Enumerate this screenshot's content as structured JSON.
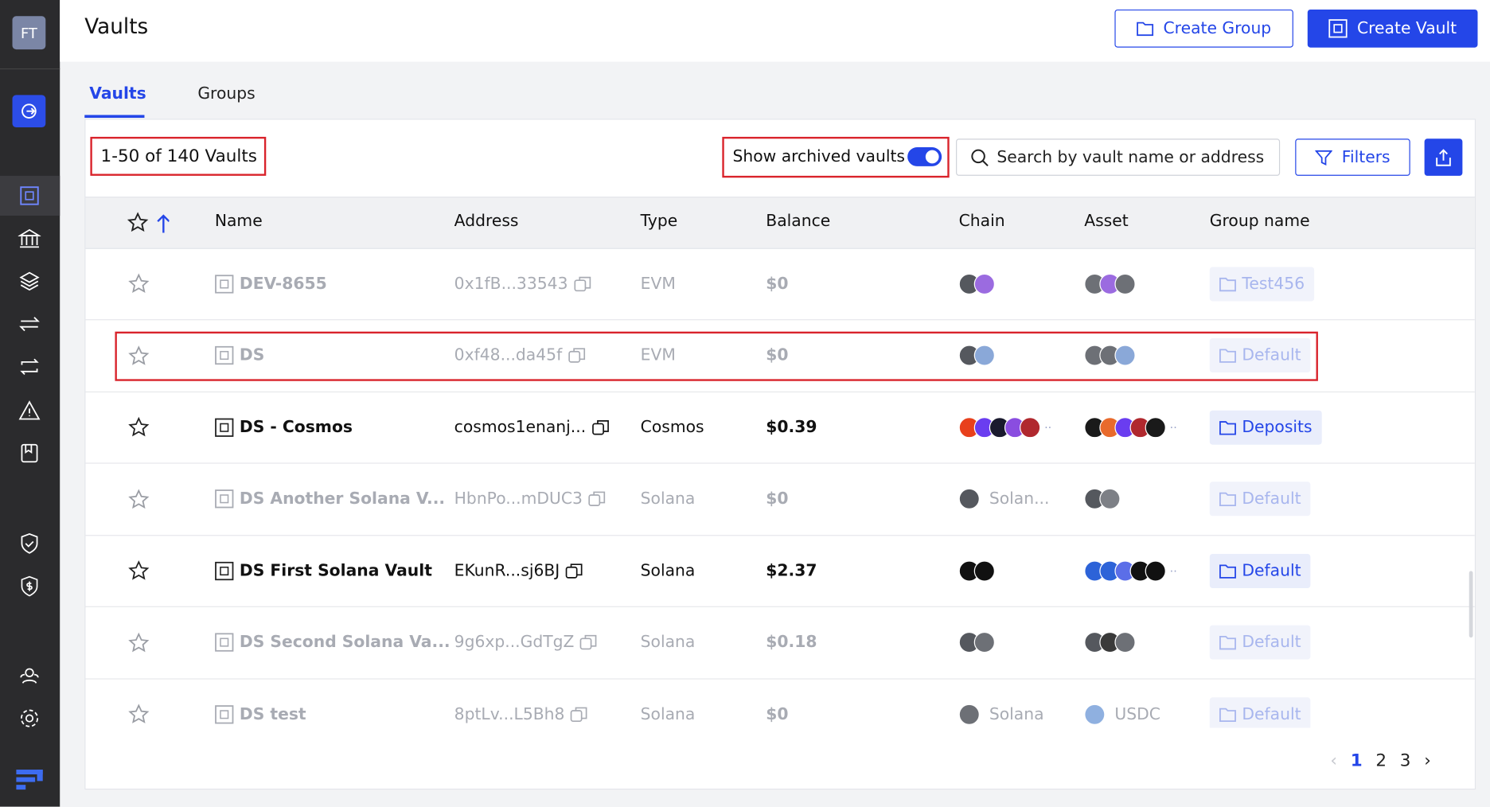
{
  "sidebar": {
    "avatar": "FT"
  },
  "header": {
    "title": "Vaults",
    "create_group": "Create Group",
    "create_vault": "Create Vault"
  },
  "tabs": [
    {
      "label": "Vaults",
      "active": true
    },
    {
      "label": "Groups",
      "active": false
    }
  ],
  "toolbar": {
    "count": "1-50 of 140 Vaults",
    "toggle_label": "Show archived vaults",
    "toggle_on": true,
    "search_placeholder": "Search by vault name or address",
    "filters": "Filters"
  },
  "table": {
    "columns": [
      "Name",
      "Address",
      "Type",
      "Balance",
      "Chain",
      "Asset",
      "Group name"
    ],
    "rows": [
      {
        "name": "DEV-8655",
        "address": "0x1fB...33543",
        "type": "EVM",
        "balance": "$0",
        "chain_icons": [
          "#55585e",
          "#9b6be0"
        ],
        "asset_icons": [
          "#6d7076",
          "#9b6be0",
          "#6d7076"
        ],
        "group": "Test456",
        "archived": true
      },
      {
        "name": "DS",
        "address": "0xf48...da45f",
        "type": "EVM",
        "balance": "$0",
        "chain_icons": [
          "#55585e",
          "#8aa8d8"
        ],
        "asset_icons": [
          "#6d7076",
          "#6d7076",
          "#8aa8d8"
        ],
        "group": "Default",
        "archived": true
      },
      {
        "name": "DS - Cosmos",
        "address": "cosmos1enanj...",
        "type": "Cosmos",
        "balance": "$0.39",
        "chain_icons": [
          "#e8401c",
          "#6a3df0",
          "#1a1a2e",
          "#8a4de0",
          "#b0282e"
        ],
        "asset_icons": [
          "#1a1a1a",
          "#e86a2c",
          "#6a3df0",
          "#b0282e",
          "#1a1a1a"
        ],
        "group": "Deposits",
        "archived": false
      },
      {
        "name": "DS Another Solana V...",
        "address": "HbnPo...mDUC3",
        "type": "Solana",
        "balance": "$0",
        "chain_icons": [
          "#55585e"
        ],
        "chain_label": "Solan...",
        "asset_icons": [
          "#55585e",
          "#7d8086"
        ],
        "group": "Default",
        "archived": true
      },
      {
        "name": "DS First Solana Vault",
        "address": "EKunR...sj6BJ",
        "type": "Solana",
        "balance": "$2.37",
        "chain_icons": [
          "#111111",
          "#111111"
        ],
        "asset_icons": [
          "#2d63d8",
          "#2d63d8",
          "#5b6ee8",
          "#111111",
          "#111111"
        ],
        "group": "Default",
        "archived": false
      },
      {
        "name": "DS Second Solana Va...",
        "address": "9g6xp...GdTgZ",
        "type": "Solana",
        "balance": "$0.18",
        "chain_icons": [
          "#55585e",
          "#6d7076"
        ],
        "asset_icons": [
          "#55585e",
          "#3a3a3a",
          "#6d7076"
        ],
        "group": "Default",
        "archived": true
      },
      {
        "name": "DS test",
        "address": "8ptLv...L5Bh8",
        "type": "Solana",
        "balance": "$0",
        "chain_icons": [
          "#6d7076"
        ],
        "chain_label": "Solana",
        "asset_icons": [
          "#8fb0e0"
        ],
        "asset_label": "USDC",
        "group": "Default",
        "archived": true
      }
    ]
  },
  "pagination": {
    "pages": [
      1,
      2,
      3
    ],
    "current": 1
  }
}
